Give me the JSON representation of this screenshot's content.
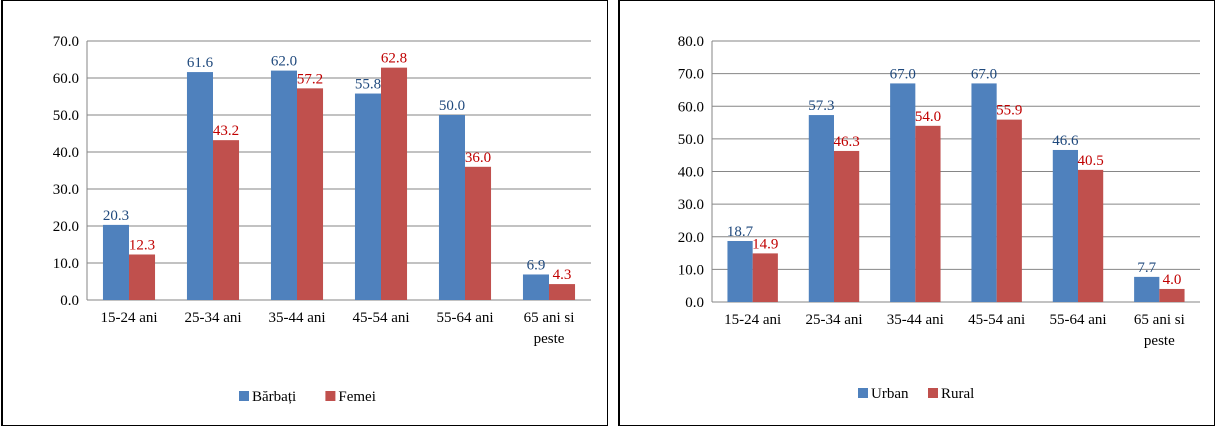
{
  "chart_data": [
    {
      "type": "bar",
      "categories": [
        "15-24 ani",
        "25-34 ani",
        "35-44 ani",
        "45-54 ani",
        "55-64 ani",
        "65 ani si peste"
      ],
      "series": [
        {
          "name": "Bărbați",
          "values": [
            20.3,
            61.6,
            62.0,
            55.8,
            50.0,
            6.9
          ],
          "labels": [
            "20.3",
            "61.6",
            "62.0",
            "55.8",
            "50.0",
            "6.9"
          ],
          "color": "#4F81BD",
          "label_color": "#1F497D"
        },
        {
          "name": "Femei",
          "values": [
            12.3,
            43.2,
            57.2,
            62.8,
            36.0,
            4.3
          ],
          "labels": [
            "12.3",
            "43.2",
            "57.2",
            "62.8",
            "36.0",
            "4.3"
          ],
          "color": "#C0504D",
          "label_color": "#C00000"
        }
      ],
      "ylim": [
        0,
        70
      ],
      "yticks": [
        "0.0",
        "10.0",
        "20.0",
        "30.0",
        "40.0",
        "50.0",
        "60.0",
        "70.0"
      ],
      "grid": true,
      "legend": "bottom"
    },
    {
      "type": "bar",
      "categories": [
        "15-24 ani",
        "25-34 ani",
        "35-44 ani",
        "45-54 ani",
        "55-64 ani",
        "65 ani si peste"
      ],
      "series": [
        {
          "name": "Urban",
          "values": [
            18.7,
            57.3,
            67.0,
            67.0,
            46.6,
            7.7
          ],
          "labels": [
            "18.7",
            "57.3",
            "67.0",
            "67.0",
            "46.6",
            "7.7"
          ],
          "color": "#4F81BD",
          "label_color": "#1F497D"
        },
        {
          "name": "Rural",
          "values": [
            14.9,
            46.3,
            54.0,
            55.9,
            40.5,
            4.0
          ],
          "labels": [
            "14.9",
            "46.3",
            "54.0",
            "55.9",
            "40.5",
            "4.0"
          ],
          "color": "#C0504D",
          "label_color": "#C00000"
        }
      ],
      "ylim": [
        0,
        80
      ],
      "yticks": [
        "0.0",
        "10.0",
        "20.0",
        "30.0",
        "40.0",
        "50.0",
        "60.0",
        "70.0",
        "80.0"
      ],
      "grid": true,
      "legend": "bottom"
    }
  ]
}
